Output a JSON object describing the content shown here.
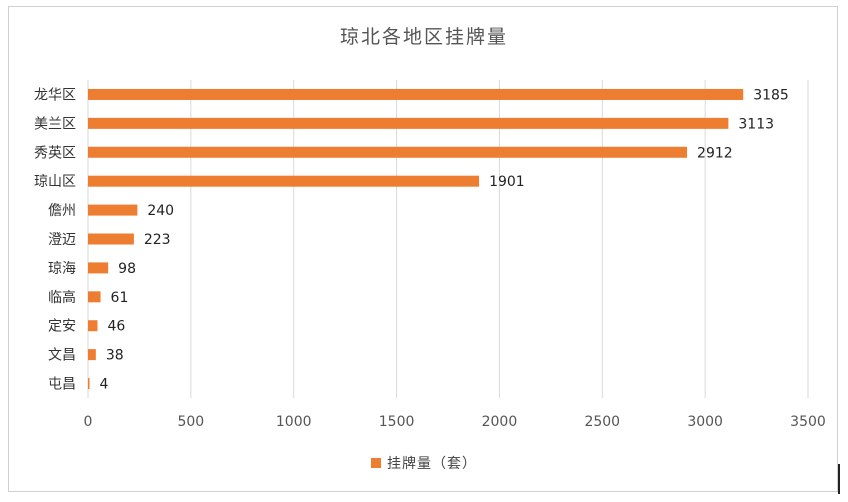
{
  "chart_data": {
    "type": "bar",
    "orientation": "horizontal",
    "title": "琼北各地区挂牌量",
    "categories": [
      "龙华区",
      "美兰区",
      "秀英区",
      "琼山区",
      "儋州",
      "澄迈",
      "琼海",
      "临高",
      "定安",
      "文昌",
      "屯昌"
    ],
    "series": [
      {
        "name": "挂牌量（套）",
        "values": [
          3185,
          3113,
          2912,
          1901,
          240,
          223,
          98,
          61,
          46,
          38,
          4
        ]
      }
    ],
    "xlim": [
      0,
      3500
    ],
    "xticks": [
      0,
      500,
      1000,
      1500,
      2000,
      2500,
      3000,
      3500
    ],
    "grid": true,
    "legend_position": "bottom",
    "colors": {
      "bar": "#ED7D31",
      "grid": "#d9d9d9"
    }
  }
}
